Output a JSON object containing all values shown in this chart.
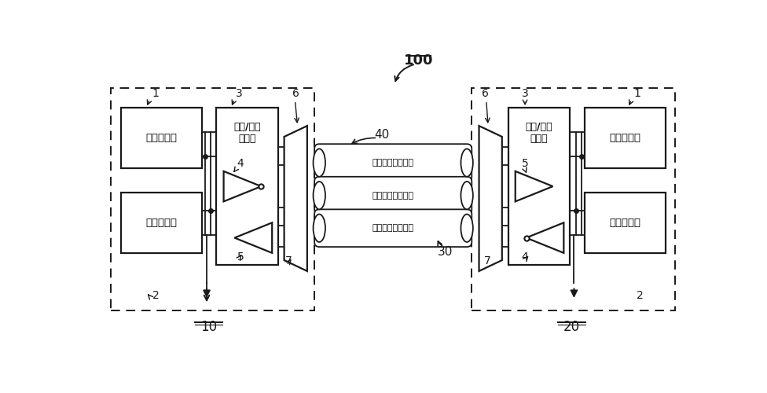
{
  "bg_color": "#ffffff",
  "box1_text": "电源电路块",
  "box2_text": "功能电路块",
  "io_text": "输入/输出\n电路块",
  "cable1_text": "电源地对传输线路",
  "cable2_text": "差分信号传输线路",
  "cable3_text": "差分信号传输线路",
  "label_100": "100",
  "label_10": "10",
  "label_20": "20",
  "label_40": "40",
  "label_30": "30",
  "num1": "1",
  "num2": "2",
  "num3": "3",
  "num4": "4",
  "num5": "5",
  "num6": "6",
  "num7": "7"
}
